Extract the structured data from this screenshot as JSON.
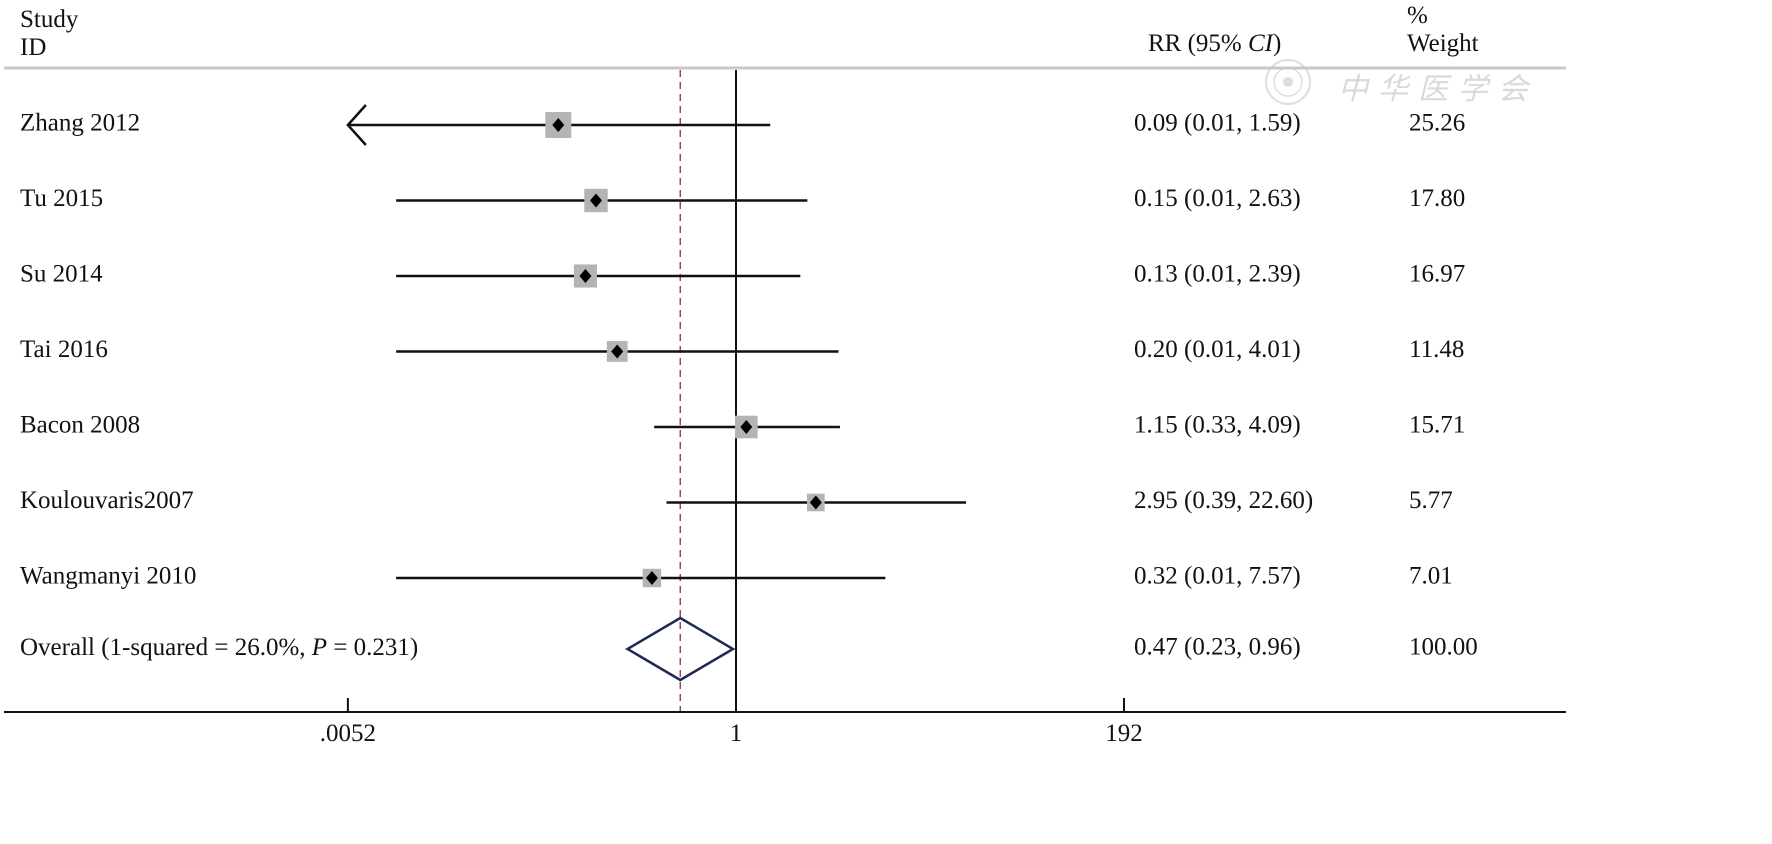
{
  "header": {
    "study_label": "Study",
    "id_label": "ID",
    "rr_label": "RR (95% ",
    "ci_label": "CI",
    "rr_close": ")",
    "pct_label": "%",
    "weight_label": "Weight"
  },
  "watermark": "中华医学会",
  "chart_data": {
    "type": "forest",
    "log_scale": true,
    "null_line": 1,
    "overall_line": 0.47,
    "xlim": [
      0.0052,
      192
    ],
    "xticks": [
      0.0052,
      1,
      192
    ],
    "xtick_labels": [
      ".0052",
      "1",
      "192"
    ],
    "studies": [
      {
        "label": "Zhang 2012",
        "rr": 0.09,
        "lo": 0.01,
        "hi": 1.59,
        "ci_text": "0.09 (0.01, 1.59)",
        "weight": 25.26,
        "weight_text": "25.26",
        "arrow_left": true
      },
      {
        "label": "Tu 2015",
        "rr": 0.15,
        "lo": 0.01,
        "hi": 2.63,
        "ci_text": "0.15 (0.01, 2.63)",
        "weight": 17.8,
        "weight_text": "17.80"
      },
      {
        "label": "Su 2014",
        "rr": 0.13,
        "lo": 0.01,
        "hi": 2.39,
        "ci_text": "0.13 (0.01, 2.39)",
        "weight": 16.97,
        "weight_text": "16.97"
      },
      {
        "label": "Tai 2016",
        "rr": 0.2,
        "lo": 0.01,
        "hi": 4.01,
        "ci_text": "0.20 (0.01, 4.01)",
        "weight": 11.48,
        "weight_text": "11.48"
      },
      {
        "label": "Bacon 2008",
        "rr": 1.15,
        "lo": 0.33,
        "hi": 4.09,
        "ci_text": "1.15 (0.33, 4.09)",
        "weight": 15.71,
        "weight_text": "15.71"
      },
      {
        "label": "Koulouvaris2007",
        "rr": 2.95,
        "lo": 0.39,
        "hi": 22.6,
        "ci_text": "2.95 (0.39, 22.60)",
        "weight": 5.77,
        "weight_text": "5.77"
      },
      {
        "label": "Wangmanyi 2010",
        "rr": 0.32,
        "lo": 0.01,
        "hi": 7.57,
        "ci_text": "0.32 (0.01, 7.57)",
        "weight": 7.01,
        "weight_text": "7.01"
      }
    ],
    "overall": {
      "label_prefix": "Overall (1-squared = 26.0%, ",
      "p_symbol": "P",
      "label_suffix": " = 0.231)",
      "rr": 0.47,
      "lo": 0.23,
      "hi": 0.96,
      "ci_text": "0.47 (0.23, 0.96)",
      "weight": 100.0,
      "weight_text": "100.00"
    }
  }
}
